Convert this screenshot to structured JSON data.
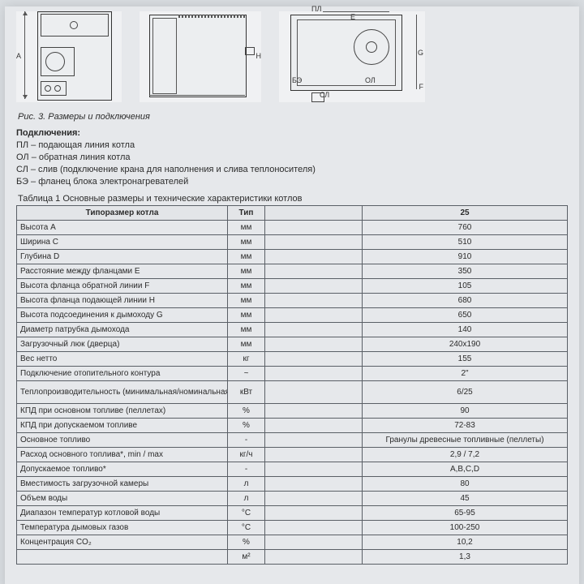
{
  "drawings": {
    "d1": {
      "label_A": "A"
    },
    "d2": {
      "label_H": "H"
    },
    "d3": {
      "label_PL": "ПЛ",
      "label_E": "E",
      "label_G": "G",
      "label_BE": "БЭ",
      "label_SL": "СЛ",
      "label_OL": "ОЛ",
      "label_F": "F"
    }
  },
  "caption": "Рис. 3.   Размеры и подключения",
  "connections": {
    "title": "Подключения:",
    "items": [
      "ПЛ – подающая линия котла",
      "ОЛ – обратная линия котла",
      "СЛ – слив (подключение крана для наполнения и слива теплоносителя)",
      "БЭ – фланец блока электронагревателей"
    ]
  },
  "table": {
    "title": "Таблица 1 Основные размеры и технические характеристики котлов",
    "headers": {
      "param": "Типоразмер котла",
      "unit": "Тип",
      "col3": "",
      "val": "25"
    },
    "rows": [
      {
        "param": "Высота A",
        "unit": "мм",
        "val": "760"
      },
      {
        "param": "Ширина C",
        "unit": "мм",
        "val": "510"
      },
      {
        "param": "Глубина D",
        "unit": "мм",
        "val": "910"
      },
      {
        "param": "Расстояние между фланцами E",
        "unit": "мм",
        "val": "350"
      },
      {
        "param": "Высота фланца обратной линии F",
        "unit": "мм",
        "val": "105"
      },
      {
        "param": "Высота фланца подающей линии H",
        "unit": "мм",
        "val": "680"
      },
      {
        "param": "Высота подсоединения к дымоходу G",
        "unit": "мм",
        "val": "650"
      },
      {
        "param": "Диаметр патрубка дымохода",
        "unit": "мм",
        "val": "140"
      },
      {
        "param": "Загрузочный люк (дверца)",
        "unit": "мм",
        "val": "240x190"
      },
      {
        "param": "Вес нетто",
        "unit": "кг",
        "val": "155"
      },
      {
        "param": "Подключение отопительного контура",
        "unit": "~",
        "val": "2\""
      },
      {
        "param": "Теплопроизводительность (минимальная/номинальная)",
        "unit": "кВт",
        "val": "6/25",
        "multiline": true
      },
      {
        "param": "КПД при основном топливе (пеллетах)",
        "unit": "%",
        "val": "90"
      },
      {
        "param": "КПД при допускаемом топливе",
        "unit": "%",
        "val": "72-83"
      },
      {
        "param": "Основное топливо",
        "unit": "-",
        "val": "Гранулы древесные топливные (пеллеты)"
      },
      {
        "param": "Расход основного топлива*,  min /  max",
        "unit": "кг/ч",
        "val": "2,9 / 7,2"
      },
      {
        "param": "Допускаемое топливо*",
        "unit": "-",
        "val": "A,B,C,D"
      },
      {
        "param": "Вместимость загрузочной камеры",
        "unit": "л",
        "val": "80"
      },
      {
        "param": "Объем воды",
        "unit": "л",
        "val": "45"
      },
      {
        "param": "Диапазон температур котловой воды",
        "unit": "°C",
        "val": "65-95"
      },
      {
        "param": "Температура дымовых газов",
        "unit": "°C",
        "val": "100-250"
      },
      {
        "param": "Концентрация CO₂",
        "unit": "%",
        "val": "10,2"
      },
      {
        "param": "",
        "unit": "м²",
        "val": "1,3"
      }
    ]
  }
}
